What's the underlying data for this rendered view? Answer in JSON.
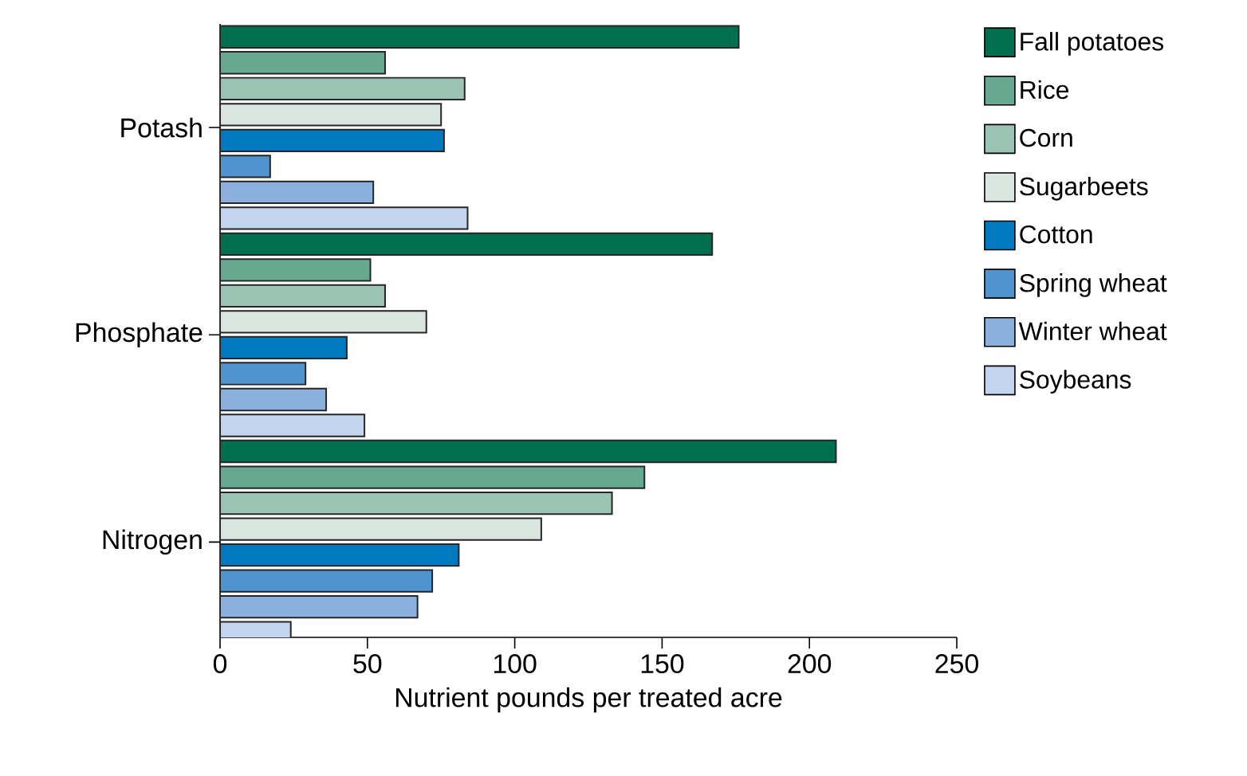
{
  "chart_data": {
    "type": "bar",
    "orientation": "horizontal",
    "xlabel": "Nutrient pounds per treated acre",
    "categories": [
      "Potash",
      "Phosphate",
      "Nitrogen"
    ],
    "series": [
      {
        "name": "Fall potatoes",
        "color": "#006f4f",
        "values": [
          176,
          167,
          209
        ]
      },
      {
        "name": "Rice",
        "color": "#66a890",
        "values": [
          56,
          51,
          144
        ]
      },
      {
        "name": "Corn",
        "color": "#9cc4b4",
        "values": [
          83,
          56,
          133
        ]
      },
      {
        "name": "Sugarbeets",
        "color": "#d8e6df",
        "values": [
          75,
          70,
          109
        ]
      },
      {
        "name": "Cotton",
        "color": "#0079c1",
        "values": [
          76,
          43,
          81
        ]
      },
      {
        "name": "Spring wheat",
        "color": "#4f93cf",
        "values": [
          17,
          29,
          72
        ]
      },
      {
        "name": "Winter wheat",
        "color": "#8cb0de",
        "values": [
          52,
          36,
          67
        ]
      },
      {
        "name": "Soybeans",
        "color": "#c3d5ee",
        "values": [
          84,
          49,
          24
        ]
      }
    ],
    "xlim": [
      0,
      250
    ],
    "xticks": [
      0,
      50,
      100,
      150,
      200,
      250
    ],
    "grid": false,
    "legend": "right"
  }
}
